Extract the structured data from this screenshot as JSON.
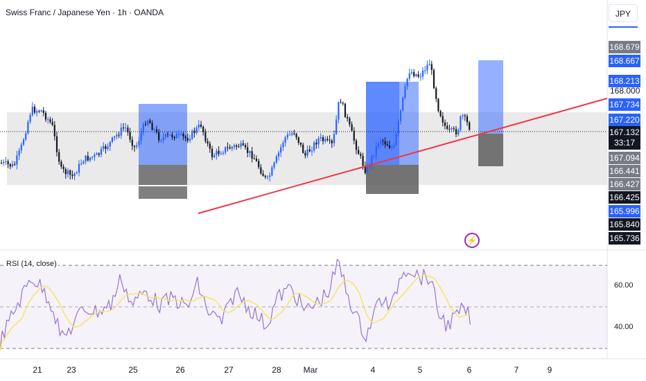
{
  "header": {
    "symbol_title": "Swiss Franc / Japanese Yen · 1h · OANDA",
    "currency_button": "JPY"
  },
  "price_axis": {
    "labels": [
      {
        "text": "168.679",
        "bg": "#787b86",
        "fg": "#ffffff"
      },
      {
        "text": "168.667",
        "bg": "#2962ff",
        "fg": "#ffffff"
      },
      {
        "text": "168.213",
        "bg": "#2962ff",
        "fg": "#ffffff"
      },
      {
        "text": "168.000",
        "bg": "",
        "fg": "#131722"
      },
      {
        "text": "167.734",
        "bg": "#2962ff",
        "fg": "#ffffff"
      },
      {
        "text": "167.220",
        "bg": "#2962ff",
        "fg": "#ffffff"
      },
      {
        "text": "167.132",
        "bg": "#131722",
        "fg": "#ffffff"
      },
      {
        "text": "33:17",
        "bg": "#131722",
        "fg": "#ffffff"
      },
      {
        "text": "167.094",
        "bg": "#787b86",
        "fg": "#ffffff"
      },
      {
        "text": "166.441",
        "bg": "#787b86",
        "fg": "#ffffff"
      },
      {
        "text": "166.427",
        "bg": "#787b86",
        "fg": "#ffffff"
      },
      {
        "text": "166.425",
        "bg": "#131722",
        "fg": "#ffffff"
      },
      {
        "text": "165.996",
        "bg": "#2962ff",
        "fg": "#ffffff"
      },
      {
        "text": "165.840",
        "bg": "#131722",
        "fg": "#ffffff"
      },
      {
        "text": "165.736",
        "bg": "#131722",
        "fg": "#ffffff"
      }
    ]
  },
  "rsi_panel": {
    "label": "RSI (14, close)",
    "ticks": [
      "60.00",
      "40.00"
    ]
  },
  "time_axis": {
    "ticks": [
      "21",
      "23",
      "25",
      "26",
      "27",
      "28",
      "Mar",
      "4",
      "5",
      "6",
      "7",
      "9"
    ]
  },
  "colors": {
    "up_candle": "#2962ff",
    "down_candle": "#131722",
    "trendline": "#f23645",
    "rsi_line": "#9575cd",
    "rsi_ma": "#f5e663",
    "zone": "#e0e0e0"
  },
  "icons": {
    "alert": "bolt-icon"
  }
}
